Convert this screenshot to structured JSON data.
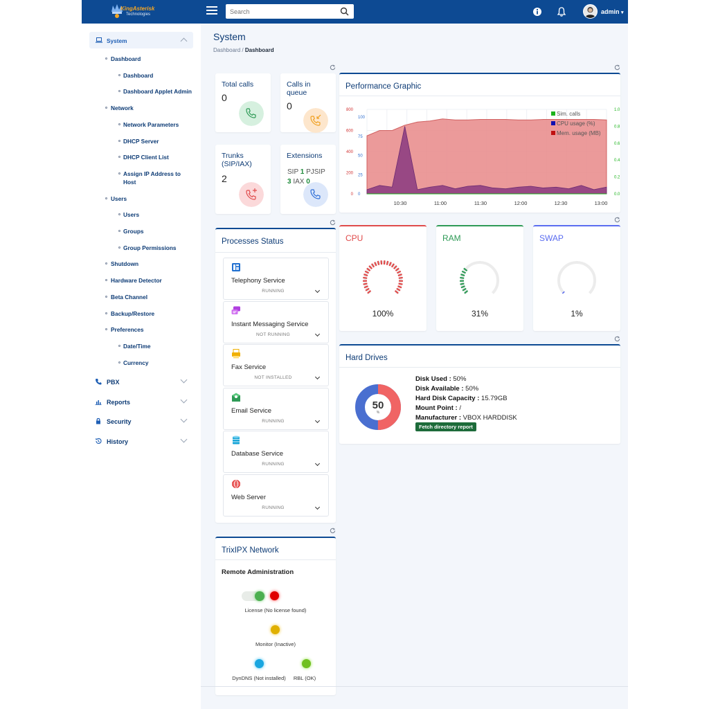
{
  "brand": {
    "line1": "KingAsterisk",
    "line2": "Technologies"
  },
  "search": {
    "placeholder": "Search"
  },
  "user": {
    "name": "admin"
  },
  "sidebar": {
    "system": "System",
    "items": [
      {
        "label": "Dashboard",
        "level": 1
      },
      {
        "label": "Dashboard",
        "level": 2,
        "active": true
      },
      {
        "label": "Dashboard Applet Admin",
        "level": 2
      },
      {
        "label": "Network",
        "level": 1
      },
      {
        "label": "Network Parameters",
        "level": 2
      },
      {
        "label": "DHCP Server",
        "level": 2
      },
      {
        "label": "DHCP Client List",
        "level": 2
      },
      {
        "label": "Assign IP Address to",
        "label2": "Host",
        "level": 2
      },
      {
        "label": "Users",
        "level": 1
      },
      {
        "label": "Users",
        "level": 2
      },
      {
        "label": "Groups",
        "level": 2
      },
      {
        "label": "Group Permissions",
        "level": 2
      },
      {
        "label": "Shutdown",
        "level": 1
      },
      {
        "label": "Hardware Detector",
        "level": 1
      },
      {
        "label": "Beta Channel",
        "level": 1
      },
      {
        "label": "Backup/Restore",
        "level": 1
      },
      {
        "label": "Preferences",
        "level": 1
      },
      {
        "label": "Date/Time",
        "level": 2
      },
      {
        "label": "Currency",
        "level": 2
      }
    ],
    "sections": [
      {
        "label": "PBX",
        "icon": "phone-icon"
      },
      {
        "label": "Reports",
        "icon": "bar-chart-icon"
      },
      {
        "label": "Security",
        "icon": "lock-icon"
      },
      {
        "label": "History",
        "icon": "history-icon"
      }
    ]
  },
  "page": {
    "title": "System",
    "breadcrumb_root": "Dashboard",
    "breadcrumb_sep": "/",
    "breadcrumb_current": "Dashboard"
  },
  "stats": {
    "total_calls": {
      "title": "Total calls",
      "value": "0",
      "color": "#2e9a56"
    },
    "calls_queue": {
      "title_l1": "Calls in",
      "title_l2": "queue",
      "value": "0",
      "color": "#f0a020"
    },
    "trunks": {
      "title_l1": "Trunks",
      "title_l2": "(SIP/IAX)",
      "value": "2",
      "color": "#e04a4a"
    },
    "extensions": {
      "title": "Extensions",
      "sip_label": "SIP",
      "sip": "1",
      "pjsip_label": "PJSIP",
      "pjsip": "3",
      "iax_label": "IAX",
      "iax": "0",
      "color": "#2f6fd6"
    }
  },
  "performance": {
    "title": "Performance Graphic",
    "legend": [
      "Sim. calls",
      "CPU usage (%)",
      "Mem. usage (MB)"
    ],
    "legend_colors": [
      "#1db31d",
      "#1010b0",
      "#c01010"
    ]
  },
  "chart_data": {
    "type": "area",
    "title": "Performance Graphic",
    "x": [
      "10:00",
      "10:10",
      "10:20",
      "10:30",
      "10:40",
      "10:50",
      "11:00",
      "11:10",
      "11:20",
      "11:30",
      "11:40",
      "11:50",
      "12:00",
      "12:10",
      "12:20",
      "12:30",
      "12:40",
      "12:50",
      "13:00",
      "13:10"
    ],
    "x_ticks": [
      "10:30",
      "11:00",
      "11:30",
      "12:00",
      "12:30",
      "13:00"
    ],
    "series": [
      {
        "name": "Mem. usage (MB)",
        "axis": "left-red",
        "values": [
          550,
          600,
          600,
          650,
          680,
          690,
          710,
          700,
          700,
          705,
          705,
          705,
          700,
          700,
          705,
          705,
          705,
          705,
          705,
          700
        ]
      },
      {
        "name": "CPU usage (%)",
        "axis": "left-blue",
        "values": [
          5,
          10,
          8,
          80,
          5,
          8,
          10,
          6,
          9,
          10,
          7,
          6,
          8,
          9,
          7,
          8,
          6,
          10,
          5,
          8
        ]
      },
      {
        "name": "Sim. calls",
        "axis": "right-green",
        "values": [
          0,
          0,
          0,
          0,
          0,
          0,
          0,
          0,
          0,
          0,
          0,
          0,
          0,
          0,
          0,
          0,
          0,
          0,
          0,
          0
        ]
      }
    ],
    "y_left_red_ticks": [
      "800",
      "600",
      "400",
      "200",
      "0"
    ],
    "y_left_red_range": [
      0,
      800
    ],
    "y_left_blue_ticks": [
      "100",
      "75",
      "50",
      "25",
      "0"
    ],
    "y_left_blue_range": [
      0,
      100
    ],
    "y_right_ticks": [
      "1.0",
      "0.8",
      "0.6",
      "0.4",
      "0.2",
      "0.0"
    ],
    "y_right_range": [
      0,
      1
    ],
    "grid": true,
    "legend_position": "top-right"
  },
  "gauges": [
    {
      "title": "CPU",
      "value": "100%",
      "level": 1.0,
      "color": "#e04a4a"
    },
    {
      "title": "RAM",
      "value": "31%",
      "level": 0.31,
      "color": "#2e9a56"
    },
    {
      "title": "SWAP",
      "value": "1%",
      "level": 0.01,
      "color": "#5a6cf0"
    }
  ],
  "processes": {
    "title": "Processes Status",
    "items": [
      {
        "name": "Telephony Service",
        "status": "RUNNING",
        "icon": "telephony-icon",
        "color": "#1f6fd0"
      },
      {
        "name": "Instant Messaging Service",
        "status": "NOT RUNNING",
        "icon": "chat-icon",
        "color": "#b040e0"
      },
      {
        "name": "Fax Service",
        "status": "NOT INSTALLED",
        "icon": "fax-icon",
        "color": "#f0b000"
      },
      {
        "name": "Email Service",
        "status": "RUNNING",
        "icon": "email-icon",
        "color": "#2e9a56"
      },
      {
        "name": "Database Service",
        "status": "RUNNING",
        "icon": "database-icon",
        "color": "#1aa6d8"
      },
      {
        "name": "Web Server",
        "status": "RUNNING",
        "icon": "globe-icon",
        "color": "#e02020"
      }
    ]
  },
  "harddrives": {
    "title": "Hard Drives",
    "used_label": "Disk Used :",
    "used": "50%",
    "available_label": "Disk Available :",
    "available": "50%",
    "capacity_label": "Hard Disk Capacity :",
    "capacity": "15.79GB",
    "mount_label": "Mount Point :",
    "mount": "/",
    "manufacturer_label": "Manufacturer :",
    "manufacturer": "VBOX HARDDISK",
    "button": "Fetch directory report",
    "donut_value": "50",
    "donut_unit": "%",
    "used_fraction": 0.5,
    "used_color": "#f06464",
    "free_color": "#4a6fd0"
  },
  "network": {
    "title": "TrixIPX Network",
    "subtitle": "Remote Administration",
    "license": "License (No license found)",
    "monitor": "Monitor (Inactive)",
    "dyndns": "DynDNS (Not installed)",
    "rbl": "RBL (OK)"
  }
}
